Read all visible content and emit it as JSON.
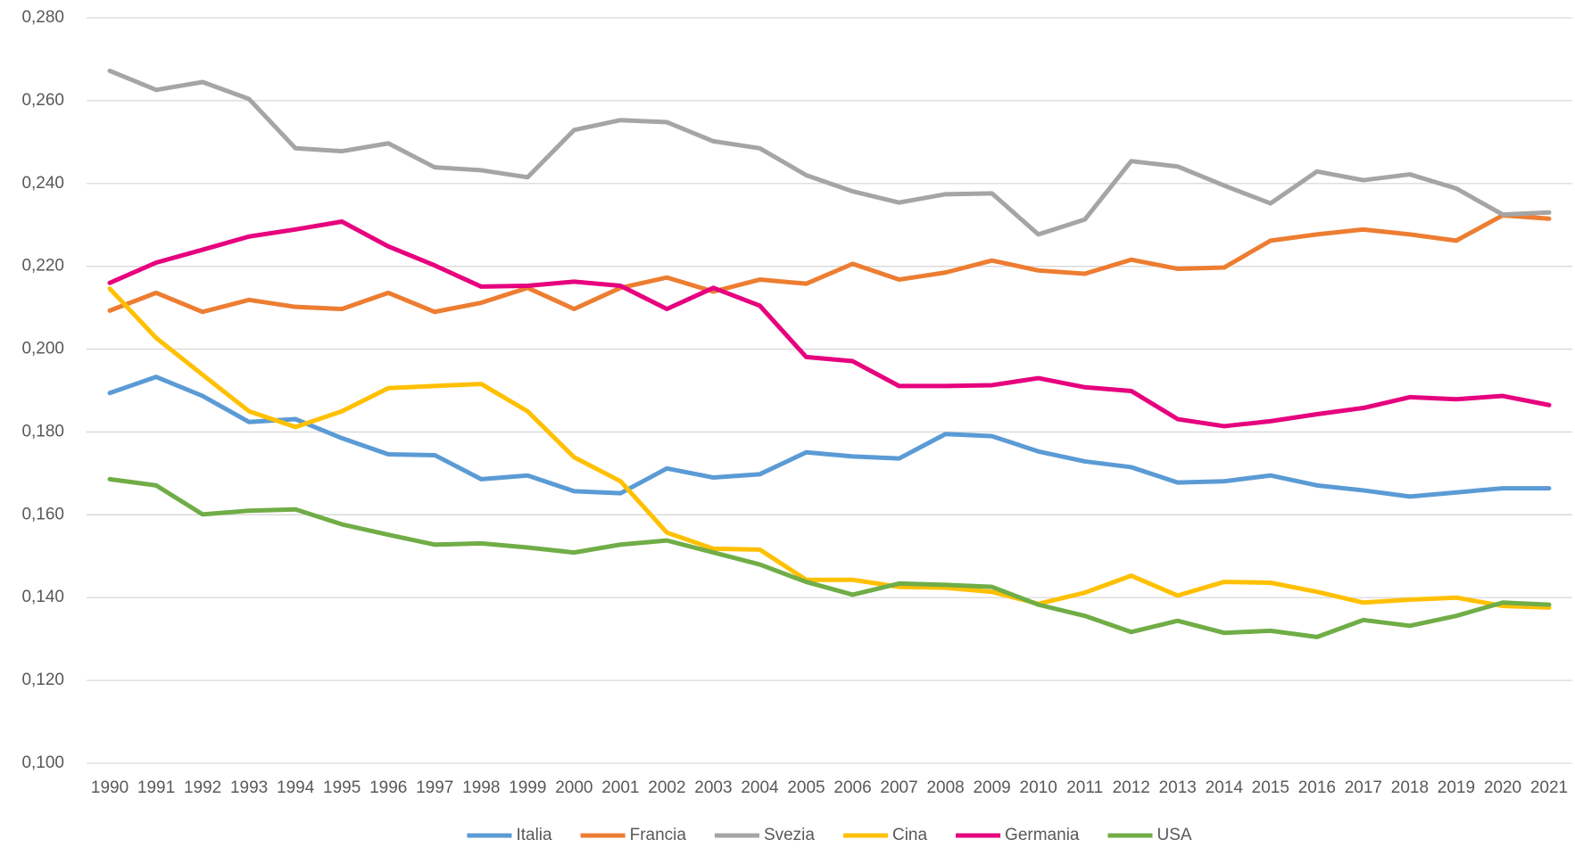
{
  "chart_data": {
    "type": "line",
    "categories": [
      "1990",
      "1991",
      "1992",
      "1993",
      "1994",
      "1995",
      "1996",
      "1997",
      "1998",
      "1999",
      "2000",
      "2001",
      "2002",
      "2003",
      "2004",
      "2005",
      "2006",
      "2007",
      "2008",
      "2009",
      "2010",
      "2011",
      "2012",
      "2013",
      "2014",
      "2015",
      "2016",
      "2017",
      "2018",
      "2019",
      "2020",
      "2021"
    ],
    "series": [
      {
        "name": "Italia",
        "color": "#5b9bd5",
        "values": [
          0.1894,
          0.1933,
          0.1887,
          0.1824,
          0.1831,
          0.1785,
          0.1746,
          0.1744,
          0.1686,
          0.1695,
          0.1657,
          0.1652,
          0.1712,
          0.169,
          0.1698,
          0.1751,
          0.1741,
          0.1736,
          0.1795,
          0.179,
          0.1753,
          0.1729,
          0.1715,
          0.1678,
          0.1681,
          0.1695,
          0.1671,
          0.1659,
          0.1644,
          0.1654,
          0.1664,
          0.1664
        ]
      },
      {
        "name": "Francia",
        "color": "#ed7d31",
        "values": [
          0.2093,
          0.2136,
          0.209,
          0.2119,
          0.2102,
          0.2097,
          0.2136,
          0.209,
          0.2112,
          0.2148,
          0.2097,
          0.2148,
          0.2173,
          0.2139,
          0.2168,
          0.2158,
          0.2206,
          0.2168,
          0.2185,
          0.2214,
          0.219,
          0.2182,
          0.2216,
          0.2194,
          0.2197,
          0.2262,
          0.2277,
          0.2289,
          0.2277,
          0.2262,
          0.2323,
          0.2315
        ]
      },
      {
        "name": "Svezia",
        "color": "#a5a5a5",
        "values": [
          0.2672,
          0.2626,
          0.2645,
          0.2604,
          0.2485,
          0.2478,
          0.2497,
          0.2439,
          0.2432,
          0.2415,
          0.2529,
          0.2553,
          0.2548,
          0.2502,
          0.2485,
          0.242,
          0.2381,
          0.2354,
          0.2374,
          0.2376,
          0.2277,
          0.2313,
          0.2454,
          0.2441,
          0.2395,
          0.2352,
          0.2429,
          0.2408,
          0.2422,
          0.2388,
          0.2325,
          0.233
        ]
      },
      {
        "name": "Cina",
        "color": "#ffc000",
        "values": [
          0.2146,
          0.2027,
          0.1938,
          0.185,
          0.1812,
          0.185,
          0.1906,
          0.1911,
          0.1916,
          0.185,
          0.1739,
          0.1681,
          0.1557,
          0.1518,
          0.1516,
          0.1443,
          0.1443,
          0.1426,
          0.1424,
          0.1414,
          0.1385,
          0.1412,
          0.1453,
          0.1405,
          0.1438,
          0.1436,
          0.1414,
          0.1388,
          0.1395,
          0.14,
          0.138,
          0.1376
        ]
      },
      {
        "name": "Germania",
        "color": "#e6007e",
        "values": [
          0.216,
          0.2209,
          0.224,
          0.2272,
          0.2289,
          0.2308,
          0.2248,
          0.2202,
          0.2151,
          0.2153,
          0.2163,
          0.2153,
          0.2097,
          0.2148,
          0.2105,
          0.1981,
          0.1971,
          0.1911,
          0.1911,
          0.1913,
          0.193,
          0.1908,
          0.1899,
          0.1831,
          0.1814,
          0.1826,
          0.1843,
          0.1858,
          0.1884,
          0.1879,
          0.1887,
          0.1865
        ]
      },
      {
        "name": "USA",
        "color": "#70ad47",
        "values": [
          0.1686,
          0.1671,
          0.1601,
          0.161,
          0.1613,
          0.1577,
          0.1552,
          0.1528,
          0.1531,
          0.1521,
          0.1509,
          0.1528,
          0.1538,
          0.1509,
          0.148,
          0.1438,
          0.1407,
          0.1434,
          0.1431,
          0.1426,
          0.1383,
          0.1356,
          0.1317,
          0.1344,
          0.1315,
          0.132,
          0.1305,
          0.1346,
          0.1332,
          0.1356,
          0.1388,
          0.1383
        ]
      }
    ],
    "ylim": [
      0.1,
      0.28
    ],
    "yticks": [
      {
        "value": 0.1,
        "label": "0,100"
      },
      {
        "value": 0.12,
        "label": "0,120"
      },
      {
        "value": 0.14,
        "label": "0,140"
      },
      {
        "value": 0.16,
        "label": "0,160"
      },
      {
        "value": 0.18,
        "label": "0,180"
      },
      {
        "value": 0.2,
        "label": "0,200"
      },
      {
        "value": 0.22,
        "label": "0,220"
      },
      {
        "value": 0.24,
        "label": "0,240"
      },
      {
        "value": 0.26,
        "label": "0,260"
      },
      {
        "value": 0.28,
        "label": "0,280"
      }
    ],
    "grid": true,
    "legend": "bottom"
  }
}
